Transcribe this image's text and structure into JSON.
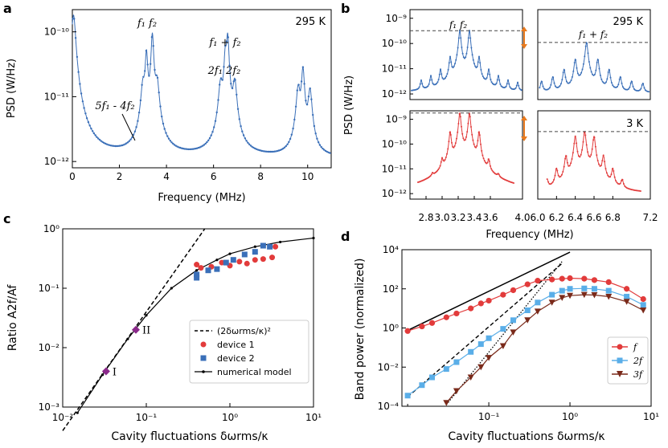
{
  "panel_labels": {
    "a": "a",
    "b": "b",
    "c": "c",
    "d": "d"
  },
  "colors": {
    "blue": "#3a6fb8",
    "red": "#e23b3b",
    "lightblue": "#5aaee8",
    "brown": "#7a2a1a",
    "purple": "#8b2a8b",
    "orange": "#e87a1e"
  },
  "chart_data": [
    {
      "id": "a",
      "type": "line",
      "title": "",
      "xlabel": "Frequency (MHz)",
      "ylabel": "PSD (W/Hz)",
      "xlim": [
        0,
        11
      ],
      "ylim": [
        8e-13,
        2.2e-10
      ],
      "yscale": "log",
      "xticks": [
        "0",
        "2",
        "4",
        "6",
        "8",
        "10"
      ],
      "yticks": [
        "10⁻¹²",
        "10⁻¹¹",
        "10⁻¹⁰"
      ],
      "temperature": "295 K",
      "peaks": [
        {
          "f": 0.05,
          "amp": 1.8e-10,
          "w": 0.08
        },
        {
          "f": 3.15,
          "amp": 4.5e-11,
          "w": 0.05
        },
        {
          "f": 3.4,
          "amp": 9e-11,
          "w": 0.05
        },
        {
          "f": 6.5,
          "amp": 4e-11,
          "w": 0.05
        },
        {
          "f": 6.6,
          "amp": 8.5e-11,
          "w": 0.05
        },
        {
          "f": 9.8,
          "amp": 2.5e-11,
          "w": 0.06
        },
        {
          "f": 3.0,
          "amp": 1.2e-11,
          "w": 0.08
        },
        {
          "f": 3.6,
          "amp": 1.4e-11,
          "w": 0.08
        },
        {
          "f": 6.3,
          "amp": 1.3e-11,
          "w": 0.08
        },
        {
          "f": 6.9,
          "amp": 1.5e-11,
          "w": 0.08
        },
        {
          "f": 9.6,
          "amp": 1.2e-11,
          "w": 0.08
        },
        {
          "f": 10.1,
          "amp": 1.1e-11,
          "w": 0.08
        }
      ],
      "baseline": 1.1e-12,
      "annotations": {
        "f1f2": "f₁ f₂",
        "sum": "f₁ + f₂",
        "harm": "2f₁ 2f₂",
        "diff": "5f₁ - 4f₂"
      }
    },
    {
      "id": "b",
      "type": "line",
      "xlabel": "Frequency (MHz)",
      "ylabel": "PSD (W/Hz)",
      "yscale": "log",
      "ylim": [
        6e-13,
        2.2e-09
      ],
      "left_xlim": [
        2.6,
        4.0
      ],
      "right_xlim": [
        6.0,
        7.2
      ],
      "left_xticks": [
        "2.8",
        "3.0",
        "3.2",
        "3.4",
        "3.6",
        "4.0"
      ],
      "right_xticks": [
        "6.0",
        "6.2",
        "6.4",
        "6.6",
        "6.8",
        "7.2"
      ],
      "yticks": [
        "10⁻¹²",
        "10⁻¹¹",
        "10⁻¹⁰",
        "10⁻⁹"
      ],
      "top_temperature": "295 K",
      "bottom_temperature": "3 K",
      "top_left_label": "f₁  f₂",
      "top_right_label": "f₁ + f₂",
      "top_left_peaks": [
        [
          2.74,
          2e-12
        ],
        [
          2.86,
          3.5e-12
        ],
        [
          2.98,
          7e-12
        ],
        [
          3.1,
          2.5e-11
        ],
        [
          3.22,
          3.2e-10
        ],
        [
          3.34,
          3.2e-10
        ],
        [
          3.46,
          2.5e-11
        ],
        [
          3.58,
          7e-12
        ],
        [
          3.7,
          3.5e-12
        ],
        [
          3.82,
          2e-12
        ],
        [
          3.94,
          1.5e-12
        ]
      ],
      "top_right_peaks": [
        [
          6.04,
          2e-12
        ],
        [
          6.16,
          3.5e-12
        ],
        [
          6.28,
          8e-12
        ],
        [
          6.4,
          2.2e-11
        ],
        [
          6.52,
          1.1e-10
        ],
        [
          6.64,
          2.2e-11
        ],
        [
          6.76,
          8e-12
        ],
        [
          6.88,
          3.5e-12
        ],
        [
          7.0,
          2e-12
        ],
        [
          7.12,
          1.5e-12
        ]
      ],
      "bottom_left_peaks": [
        [
          2.88,
          1.5e-12
        ],
        [
          3.0,
          1.5e-11
        ],
        [
          3.1,
          3e-10
        ],
        [
          3.22,
          1.8e-09
        ],
        [
          3.34,
          1.8e-09
        ],
        [
          3.46,
          3e-10
        ],
        [
          3.58,
          1.5e-11
        ],
        [
          3.7,
          1.5e-12
        ]
      ],
      "bottom_right_peaks": [
        [
          6.1,
          2e-12
        ],
        [
          6.2,
          8e-12
        ],
        [
          6.3,
          3e-11
        ],
        [
          6.4,
          2e-10
        ],
        [
          6.5,
          3.2e-10
        ],
        [
          6.6,
          2e-10
        ],
        [
          6.7,
          3e-11
        ],
        [
          6.8,
          8e-12
        ],
        [
          6.9,
          2e-12
        ]
      ],
      "top_baseline": 1.1e-12,
      "bottom_baseline": 9e-13,
      "top_left_dash": 3.2e-10,
      "top_right_dash": 1.1e-10,
      "bottom_left_dash": 1.8e-09,
      "bottom_right_dash": 3.2e-10
    },
    {
      "id": "c",
      "type": "scatter",
      "xlabel": "Cavity fluctuations δωrms/κ",
      "ylabel": "Ratio A2f/Af",
      "xscale": "log",
      "yscale": "log",
      "xlim": [
        0.01,
        10
      ],
      "ylim": [
        0.001,
        1
      ],
      "xticks": [
        "10⁻²",
        "10⁻¹",
        "10⁰",
        "10¹"
      ],
      "yticks": [
        "10⁻³",
        "10⁻²",
        "10⁻¹",
        "10⁰"
      ],
      "legend": [
        "(2δωrms/κ)²",
        "device 1",
        "device 2",
        "numerical model"
      ],
      "theory_points": [
        [
          0.01,
          0.0004
        ],
        [
          0.5,
          1.0
        ]
      ],
      "model": [
        [
          0.015,
          0.0008
        ],
        [
          0.03,
          0.0035
        ],
        [
          0.06,
          0.014
        ],
        [
          0.1,
          0.035
        ],
        [
          0.2,
          0.1
        ],
        [
          0.4,
          0.2
        ],
        [
          0.7,
          0.3
        ],
        [
          1.0,
          0.38
        ],
        [
          2.0,
          0.5
        ],
        [
          4.0,
          0.6
        ],
        [
          10.0,
          0.7
        ]
      ],
      "device1": [
        [
          0.4,
          0.25
        ],
        [
          0.45,
          0.22
        ],
        [
          0.6,
          0.23
        ],
        [
          0.8,
          0.27
        ],
        [
          1.0,
          0.24
        ],
        [
          1.3,
          0.28
        ],
        [
          1.6,
          0.26
        ],
        [
          2.0,
          0.3
        ],
        [
          2.5,
          0.31
        ],
        [
          3.2,
          0.33
        ],
        [
          3.5,
          0.5
        ]
      ],
      "device2": [
        [
          0.4,
          0.17
        ],
        [
          0.4,
          0.15
        ],
        [
          0.55,
          0.2
        ],
        [
          0.7,
          0.21
        ],
        [
          0.9,
          0.27
        ],
        [
          1.1,
          0.3
        ],
        [
          1.5,
          0.37
        ],
        [
          2.0,
          0.41
        ],
        [
          2.5,
          0.52
        ],
        [
          3.0,
          0.5
        ]
      ],
      "markers": [
        {
          "label": "I",
          "x": 0.033,
          "y": 0.004
        },
        {
          "label": "II",
          "x": 0.075,
          "y": 0.02
        }
      ]
    },
    {
      "id": "d",
      "type": "line",
      "xlabel": "Cavity fluctuations δωrms/κ",
      "ylabel": "Band power (normalized)",
      "xscale": "log",
      "yscale": "log",
      "xlim": [
        0.0085,
        10
      ],
      "ylim": [
        0.0001,
        10000
      ],
      "xticks": [
        "10⁻¹",
        "10⁰",
        "10¹"
      ],
      "yticks": [
        "10⁻⁴",
        "10⁻²",
        "10⁰",
        "10²",
        "10⁴"
      ],
      "legend": [
        "f",
        "2f",
        "3f"
      ],
      "series": [
        {
          "name": "f",
          "values": [
            [
              0.01,
              0.7
            ],
            [
              0.015,
              1.2
            ],
            [
              0.02,
              1.8
            ],
            [
              0.03,
              3.5
            ],
            [
              0.04,
              5.5
            ],
            [
              0.06,
              10
            ],
            [
              0.08,
              18
            ],
            [
              0.1,
              25
            ],
            [
              0.15,
              50
            ],
            [
              0.2,
              85
            ],
            [
              0.3,
              170
            ],
            [
              0.4,
              260
            ],
            [
              0.6,
              300
            ],
            [
              0.8,
              330
            ],
            [
              1.0,
              350
            ],
            [
              1.5,
              330
            ],
            [
              2.0,
              280
            ],
            [
              3.0,
              220
            ],
            [
              5.0,
              100
            ],
            [
              8.0,
              30
            ]
          ]
        },
        {
          "name": "2f",
          "values": [
            [
              0.01,
              0.00035
            ],
            [
              0.015,
              0.0012
            ],
            [
              0.02,
              0.003
            ],
            [
              0.03,
              0.008
            ],
            [
              0.04,
              0.018
            ],
            [
              0.06,
              0.06
            ],
            [
              0.08,
              0.15
            ],
            [
              0.1,
              0.3
            ],
            [
              0.15,
              0.9
            ],
            [
              0.2,
              2.5
            ],
            [
              0.3,
              8
            ],
            [
              0.4,
              20
            ],
            [
              0.6,
              50
            ],
            [
              0.8,
              80
            ],
            [
              1.0,
              100
            ],
            [
              1.5,
              105
            ],
            [
              2.0,
              100
            ],
            [
              3.0,
              80
            ],
            [
              5.0,
              40
            ],
            [
              8.0,
              15
            ]
          ]
        },
        {
          "name": "3f",
          "values": [
            [
              0.03,
              0.00015
            ],
            [
              0.04,
              0.0006
            ],
            [
              0.06,
              0.003
            ],
            [
              0.08,
              0.01
            ],
            [
              0.1,
              0.03
            ],
            [
              0.15,
              0.12
            ],
            [
              0.2,
              0.6
            ],
            [
              0.3,
              2.5
            ],
            [
              0.4,
              7
            ],
            [
              0.6,
              20
            ],
            [
              0.8,
              35
            ],
            [
              1.0,
              45
            ],
            [
              1.5,
              50
            ],
            [
              2.0,
              48
            ],
            [
              3.0,
              40
            ],
            [
              5.0,
              22
            ],
            [
              8.0,
              8
            ]
          ]
        }
      ],
      "asymptotes": {
        "f_line": [
          [
            0.01,
            0.75
          ],
          [
            1.0,
            7500
          ]
        ],
        "f2_line": [
          [
            0.01,
            0.0003
          ],
          [
            0.8,
            2000
          ]
        ],
        "f3_line": [
          [
            0.03,
            0.00012
          ],
          [
            0.8,
            2500
          ]
        ]
      }
    }
  ]
}
